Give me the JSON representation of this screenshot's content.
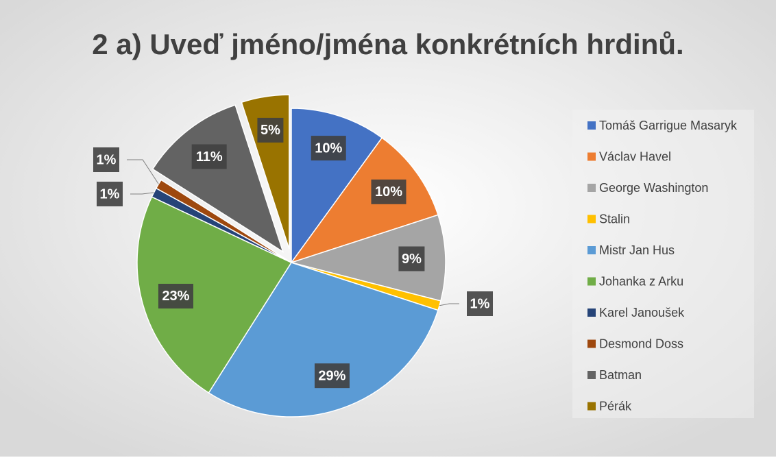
{
  "chart_data": {
    "type": "pie",
    "title": "2 a) Uveď jméno/jména konkrétních hrdinů.",
    "categories": [
      "Tomáš Garrigue Masaryk",
      "Václav Havel",
      "George Washington",
      "Stalin",
      "Mistr Jan Hus",
      "Johanka z Arku",
      "Karel Janoušek",
      "Desmond Doss",
      "Batman",
      "Pérák"
    ],
    "values": [
      10,
      10,
      9,
      1,
      29,
      23,
      1,
      1,
      11,
      5
    ],
    "value_labels": [
      "10%",
      "10%",
      "9%",
      "1%",
      "29%",
      "23%",
      "1%",
      "1%",
      "11%",
      "5%"
    ],
    "colors": [
      "#4472c4",
      "#ed7d31",
      "#a5a5a5",
      "#ffc000",
      "#5b9bd5",
      "#70ad47",
      "#264478",
      "#9e480e",
      "#636363",
      "#997300"
    ],
    "legend": "right"
  }
}
